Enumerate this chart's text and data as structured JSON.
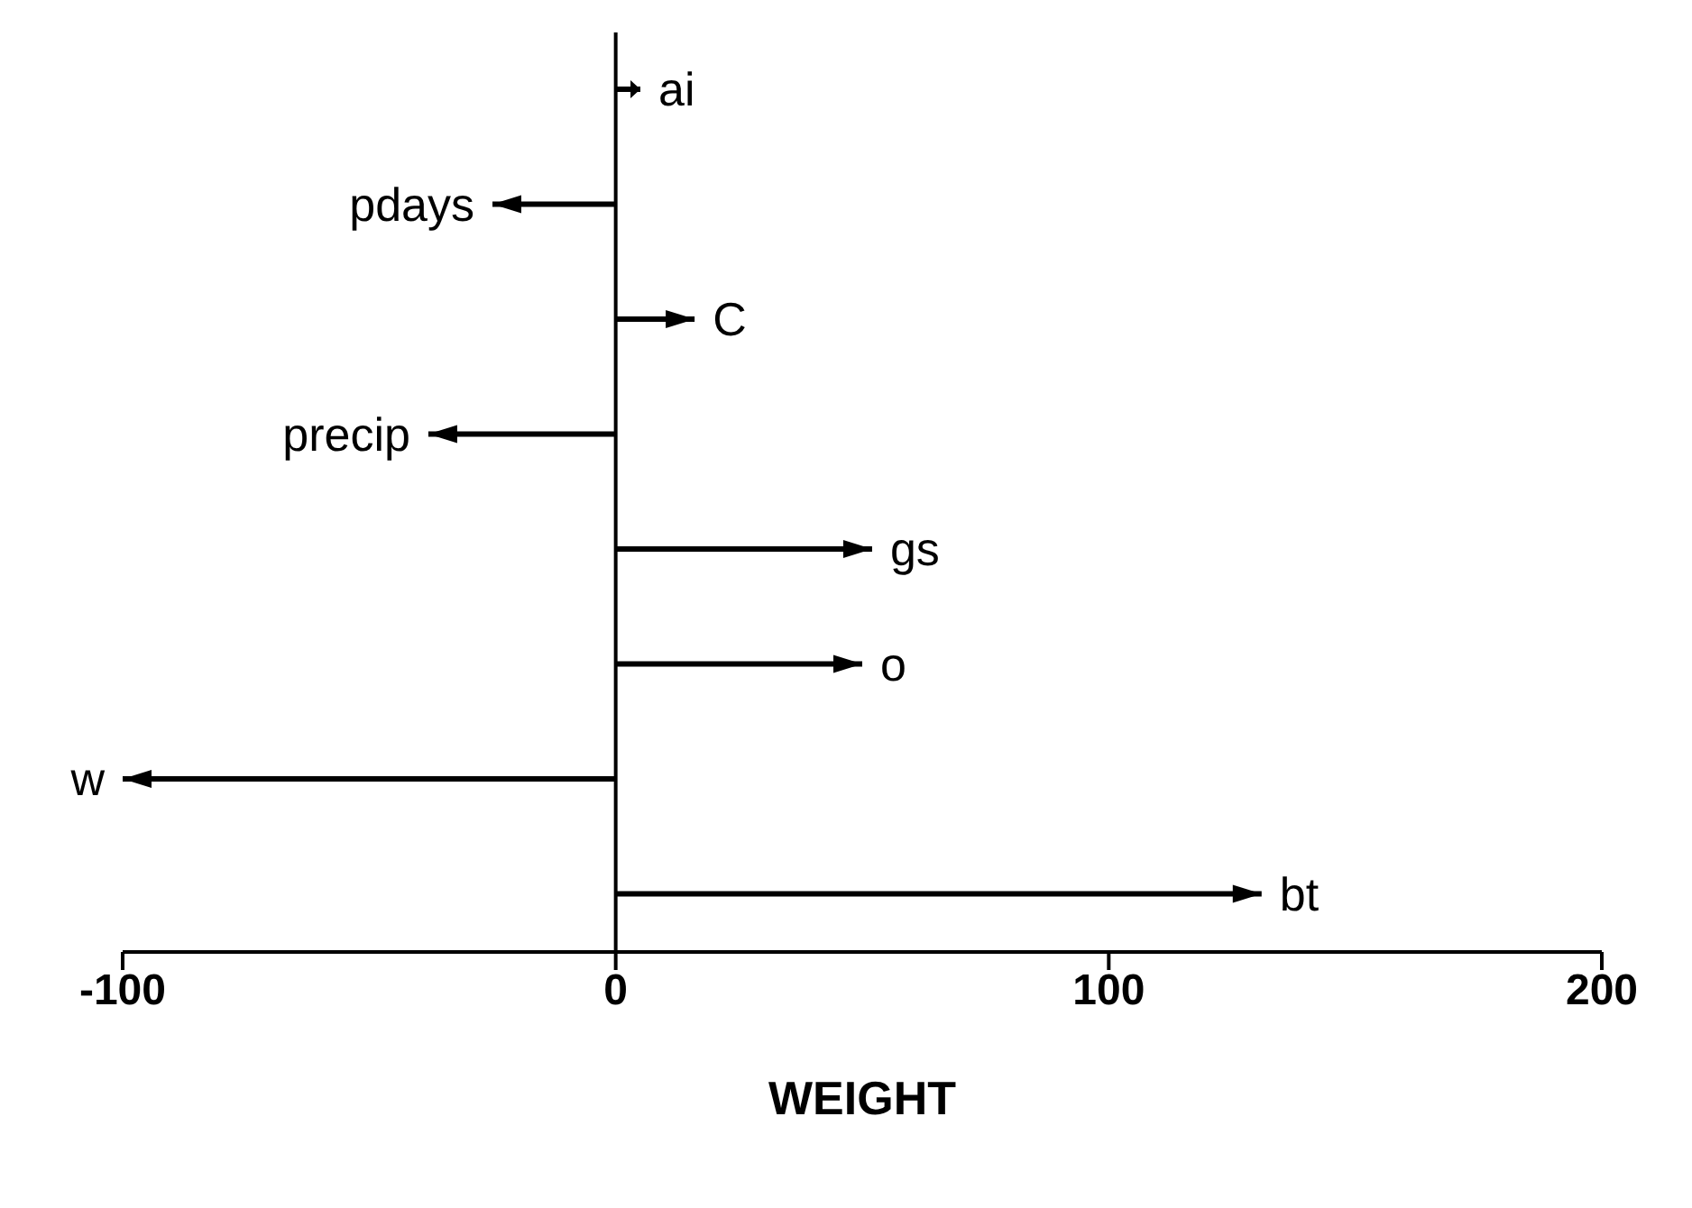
{
  "chart_data": {
    "type": "bar",
    "orientation": "horizontal",
    "xlabel": "WEIGHT",
    "categories": [
      "ai",
      "pdays",
      "C",
      "precip",
      "gs",
      "o",
      "w",
      "bt"
    ],
    "values": [
      5,
      -25,
      16,
      -38,
      52,
      50,
      -100,
      131
    ],
    "color": "#000000",
    "xlim": [
      -100,
      200
    ],
    "xticks": [
      -100,
      0,
      100,
      200
    ],
    "ref_lines": [
      {
        "axis": "x",
        "value": 0
      }
    ],
    "grid": false,
    "legend": false
  }
}
